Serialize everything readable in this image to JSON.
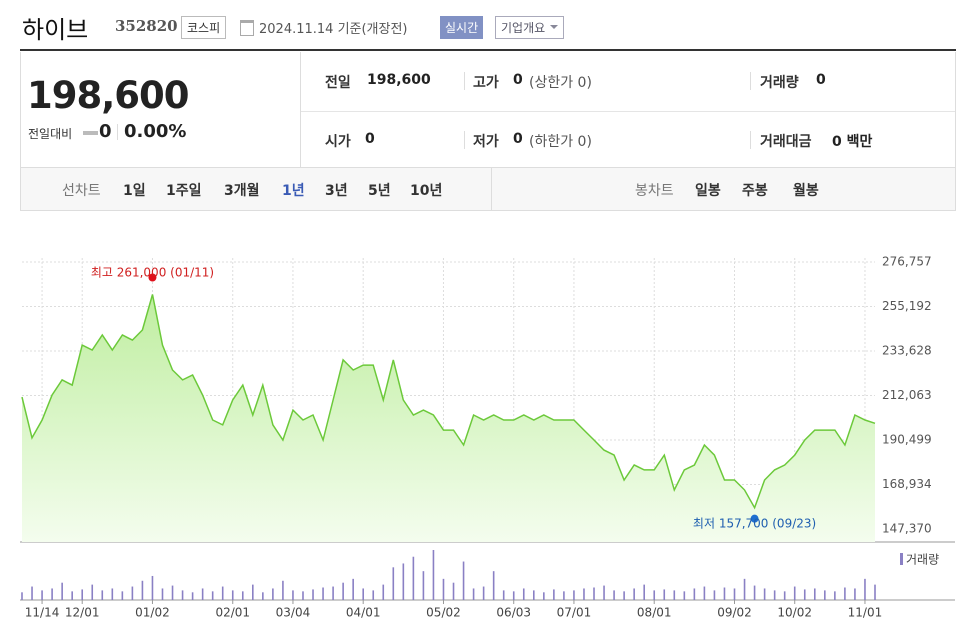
{
  "header": {
    "name": "하이브",
    "code": "352820",
    "market": "코스피",
    "date": "2024.11.14 기준(개장전)",
    "realtime": "실시간",
    "overview": "기업개요"
  },
  "quote": {
    "price": "198,600",
    "change_label": "전일대비",
    "change": "0",
    "change_pct": "0.00%"
  },
  "info": {
    "rows": [
      [
        {
          "label": "전일",
          "value": "198,600"
        },
        {
          "label": "고가",
          "value": "0",
          "sub": "(상한가 0)"
        },
        {
          "label": "거래량",
          "value": "0"
        }
      ],
      [
        {
          "label": "시가",
          "value": "0"
        },
        {
          "label": "저가",
          "value": "0",
          "sub": "(하한가 0)"
        },
        {
          "label": "거래대금",
          "value": "0 백만"
        }
      ]
    ]
  },
  "tabs": {
    "line_label": "선차트",
    "line_periods": [
      "1일",
      "1주일",
      "3개월",
      "1년",
      "3년",
      "5년",
      "10년"
    ],
    "selected": 3,
    "candle_label": "봉차트",
    "candle_periods": [
      "일봉",
      "주봉",
      "월봉"
    ]
  },
  "chart_data": {
    "type": "area",
    "color": "#6cc93a",
    "categories": [
      null,
      null,
      "11/14",
      null,
      null,
      null,
      "12/01",
      null,
      null,
      null,
      null,
      null,
      null,
      "01/02",
      null,
      null,
      null,
      null,
      null,
      null,
      null,
      "02/01",
      null,
      null,
      null,
      null,
      null,
      "03/04",
      null,
      null,
      null,
      null,
      null,
      null,
      "04/01",
      null,
      null,
      null,
      null,
      null,
      null,
      null,
      "05/02",
      null,
      null,
      null,
      null,
      null,
      null,
      "06/03",
      null,
      null,
      null,
      null,
      null,
      "07/01",
      null,
      null,
      null,
      null,
      null,
      null,
      null,
      "08/01",
      null,
      null,
      null,
      null,
      null,
      null,
      null,
      "09/02",
      null,
      null,
      null,
      null,
      null,
      "10/02",
      null,
      null,
      null,
      null,
      null,
      null,
      "11/01",
      null
    ],
    "values": [
      211300,
      191500,
      200200,
      212300,
      219600,
      217100,
      236500,
      234100,
      241400,
      234100,
      241400,
      238900,
      243800,
      261000,
      236500,
      224400,
      219600,
      222000,
      212300,
      200200,
      197800,
      209900,
      217100,
      202600,
      217100,
      197800,
      190500,
      205000,
      200200,
      202600,
      190500,
      209900,
      229300,
      224400,
      226800,
      226800,
      209900,
      229300,
      209900,
      202600,
      205000,
      202600,
      195300,
      195300,
      188100,
      202600,
      200200,
      202600,
      200200,
      200200,
      202600,
      200200,
      202600,
      200200,
      200200,
      200200,
      195300,
      190500,
      185600,
      183200,
      171100,
      178400,
      176000,
      176000,
      183200,
      166300,
      176000,
      178400,
      188100,
      183200,
      171100,
      171100,
      166300,
      157700,
      171100,
      176000,
      178400,
      183200,
      190500,
      195300,
      195300,
      195300,
      188100,
      202600,
      200200,
      198600
    ],
    "ylim": [
      147370,
      276757
    ],
    "yticks": [
      {
        "value": 147370,
        "label": "147,370"
      },
      {
        "value": 168934,
        "label": "168,934"
      },
      {
        "value": 190499,
        "label": "190,499"
      },
      {
        "value": 212063,
        "label": "212,063"
      },
      {
        "value": 233628,
        "label": "233,628"
      },
      {
        "value": 255192,
        "label": "255,192"
      },
      {
        "value": 276757,
        "label": "276,757"
      }
    ],
    "grid": true,
    "max_label": "최고 261,000 (01/11)",
    "min_label": "최저 157,700 (09/23)",
    "volume": {
      "name": "거래량",
      "color": "#8a80c4",
      "values": [
        8,
        14,
        10,
        12,
        18,
        9,
        11,
        16,
        10,
        12,
        9,
        14,
        20,
        25,
        12,
        15,
        10,
        8,
        12,
        9,
        14,
        10,
        9,
        16,
        8,
        12,
        20,
        10,
        9,
        11,
        13,
        14,
        18,
        22,
        12,
        10,
        16,
        34,
        38,
        45,
        30,
        52,
        22,
        18,
        40,
        12,
        14,
        30,
        10,
        9,
        12,
        10,
        8,
        11,
        9,
        10,
        12,
        13,
        15,
        10,
        9,
        12,
        16,
        10,
        11,
        10,
        9,
        12,
        14,
        10,
        13,
        12,
        22,
        15,
        12,
        10,
        9,
        14,
        11,
        12,
        10,
        9,
        13,
        12,
        22,
        16
      ]
    }
  }
}
